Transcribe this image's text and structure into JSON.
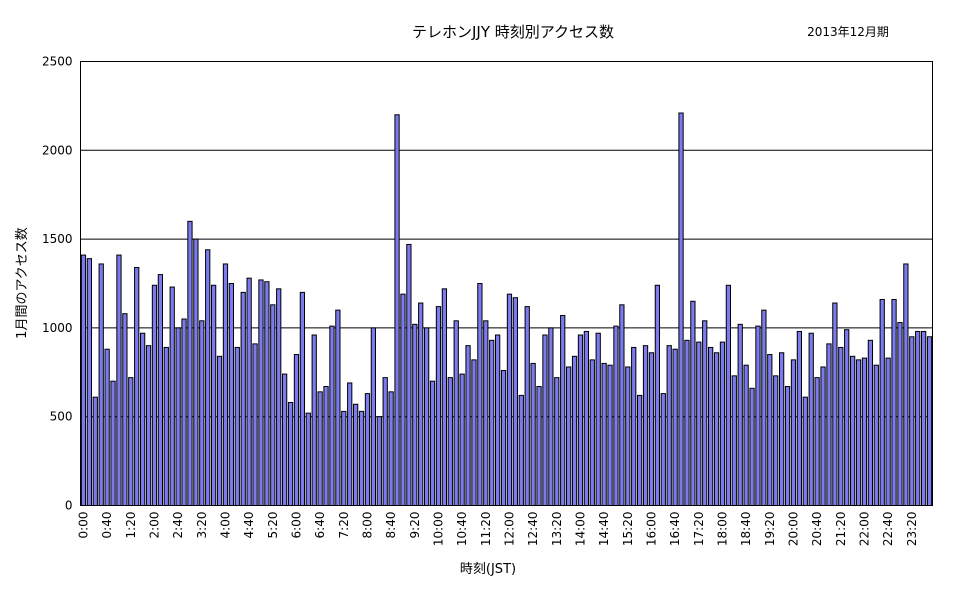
{
  "chart_data": {
    "type": "bar",
    "title": "テレホンJJY 時刻別アクセス数",
    "period": "2013年12月期",
    "xlabel": "時刻(JST)",
    "ylabel": "1月間のアクセス数",
    "ylim": [
      0,
      2500
    ],
    "yticks": [
      0,
      500,
      1000,
      1500,
      2000,
      2500
    ],
    "grid": true,
    "xtick_labels": [
      "0:00",
      "0:40",
      "1:20",
      "2:00",
      "2:40",
      "3:20",
      "4:00",
      "4:40",
      "5:20",
      "6:00",
      "6:40",
      "7:20",
      "8:00",
      "8:40",
      "9:20",
      "10:00",
      "10:40",
      "11:20",
      "12:00",
      "12:40",
      "13:20",
      "14:00",
      "14:40",
      "15:20",
      "16:00",
      "16:40",
      "17:20",
      "18:00",
      "18:40",
      "19:20",
      "20:00",
      "20:40",
      "21:20",
      "22:00",
      "22:40",
      "23:20"
    ],
    "values": [
      1410,
      1390,
      610,
      1360,
      880,
      700,
      1410,
      1080,
      720,
      1340,
      970,
      900,
      1240,
      1300,
      890,
      1230,
      1000,
      1050,
      1600,
      1500,
      1040,
      1440,
      1240,
      840,
      1360,
      1250,
      890,
      1200,
      1280,
      910,
      1270,
      1260,
      1130,
      1220,
      740,
      580,
      850,
      1200,
      520,
      960,
      640,
      670,
      1010,
      1100,
      530,
      690,
      570,
      530,
      630,
      1000,
      500,
      720,
      640,
      2200,
      1190,
      1470,
      1020,
      1140,
      1000,
      700,
      1120,
      1220,
      720,
      1040,
      740,
      900,
      820,
      1250,
      1040,
      930,
      960,
      760,
      1190,
      1170,
      620,
      1120,
      800,
      670,
      960,
      1000,
      720,
      1070,
      780,
      840,
      960,
      980,
      820,
      970,
      800,
      790,
      1010,
      1130,
      780,
      890,
      620,
      900,
      860,
      1240,
      630,
      900,
      880,
      2210,
      930,
      1150,
      920,
      1040,
      890,
      860,
      920,
      1240,
      730,
      1020,
      790,
      660,
      1010,
      1100,
      850,
      730,
      860,
      670,
      820,
      980,
      610,
      970,
      720,
      780,
      910,
      1140,
      890,
      990,
      840,
      820,
      830,
      930,
      790,
      1160,
      830,
      1160,
      1030,
      1360,
      950,
      980,
      980,
      950
    ]
  }
}
